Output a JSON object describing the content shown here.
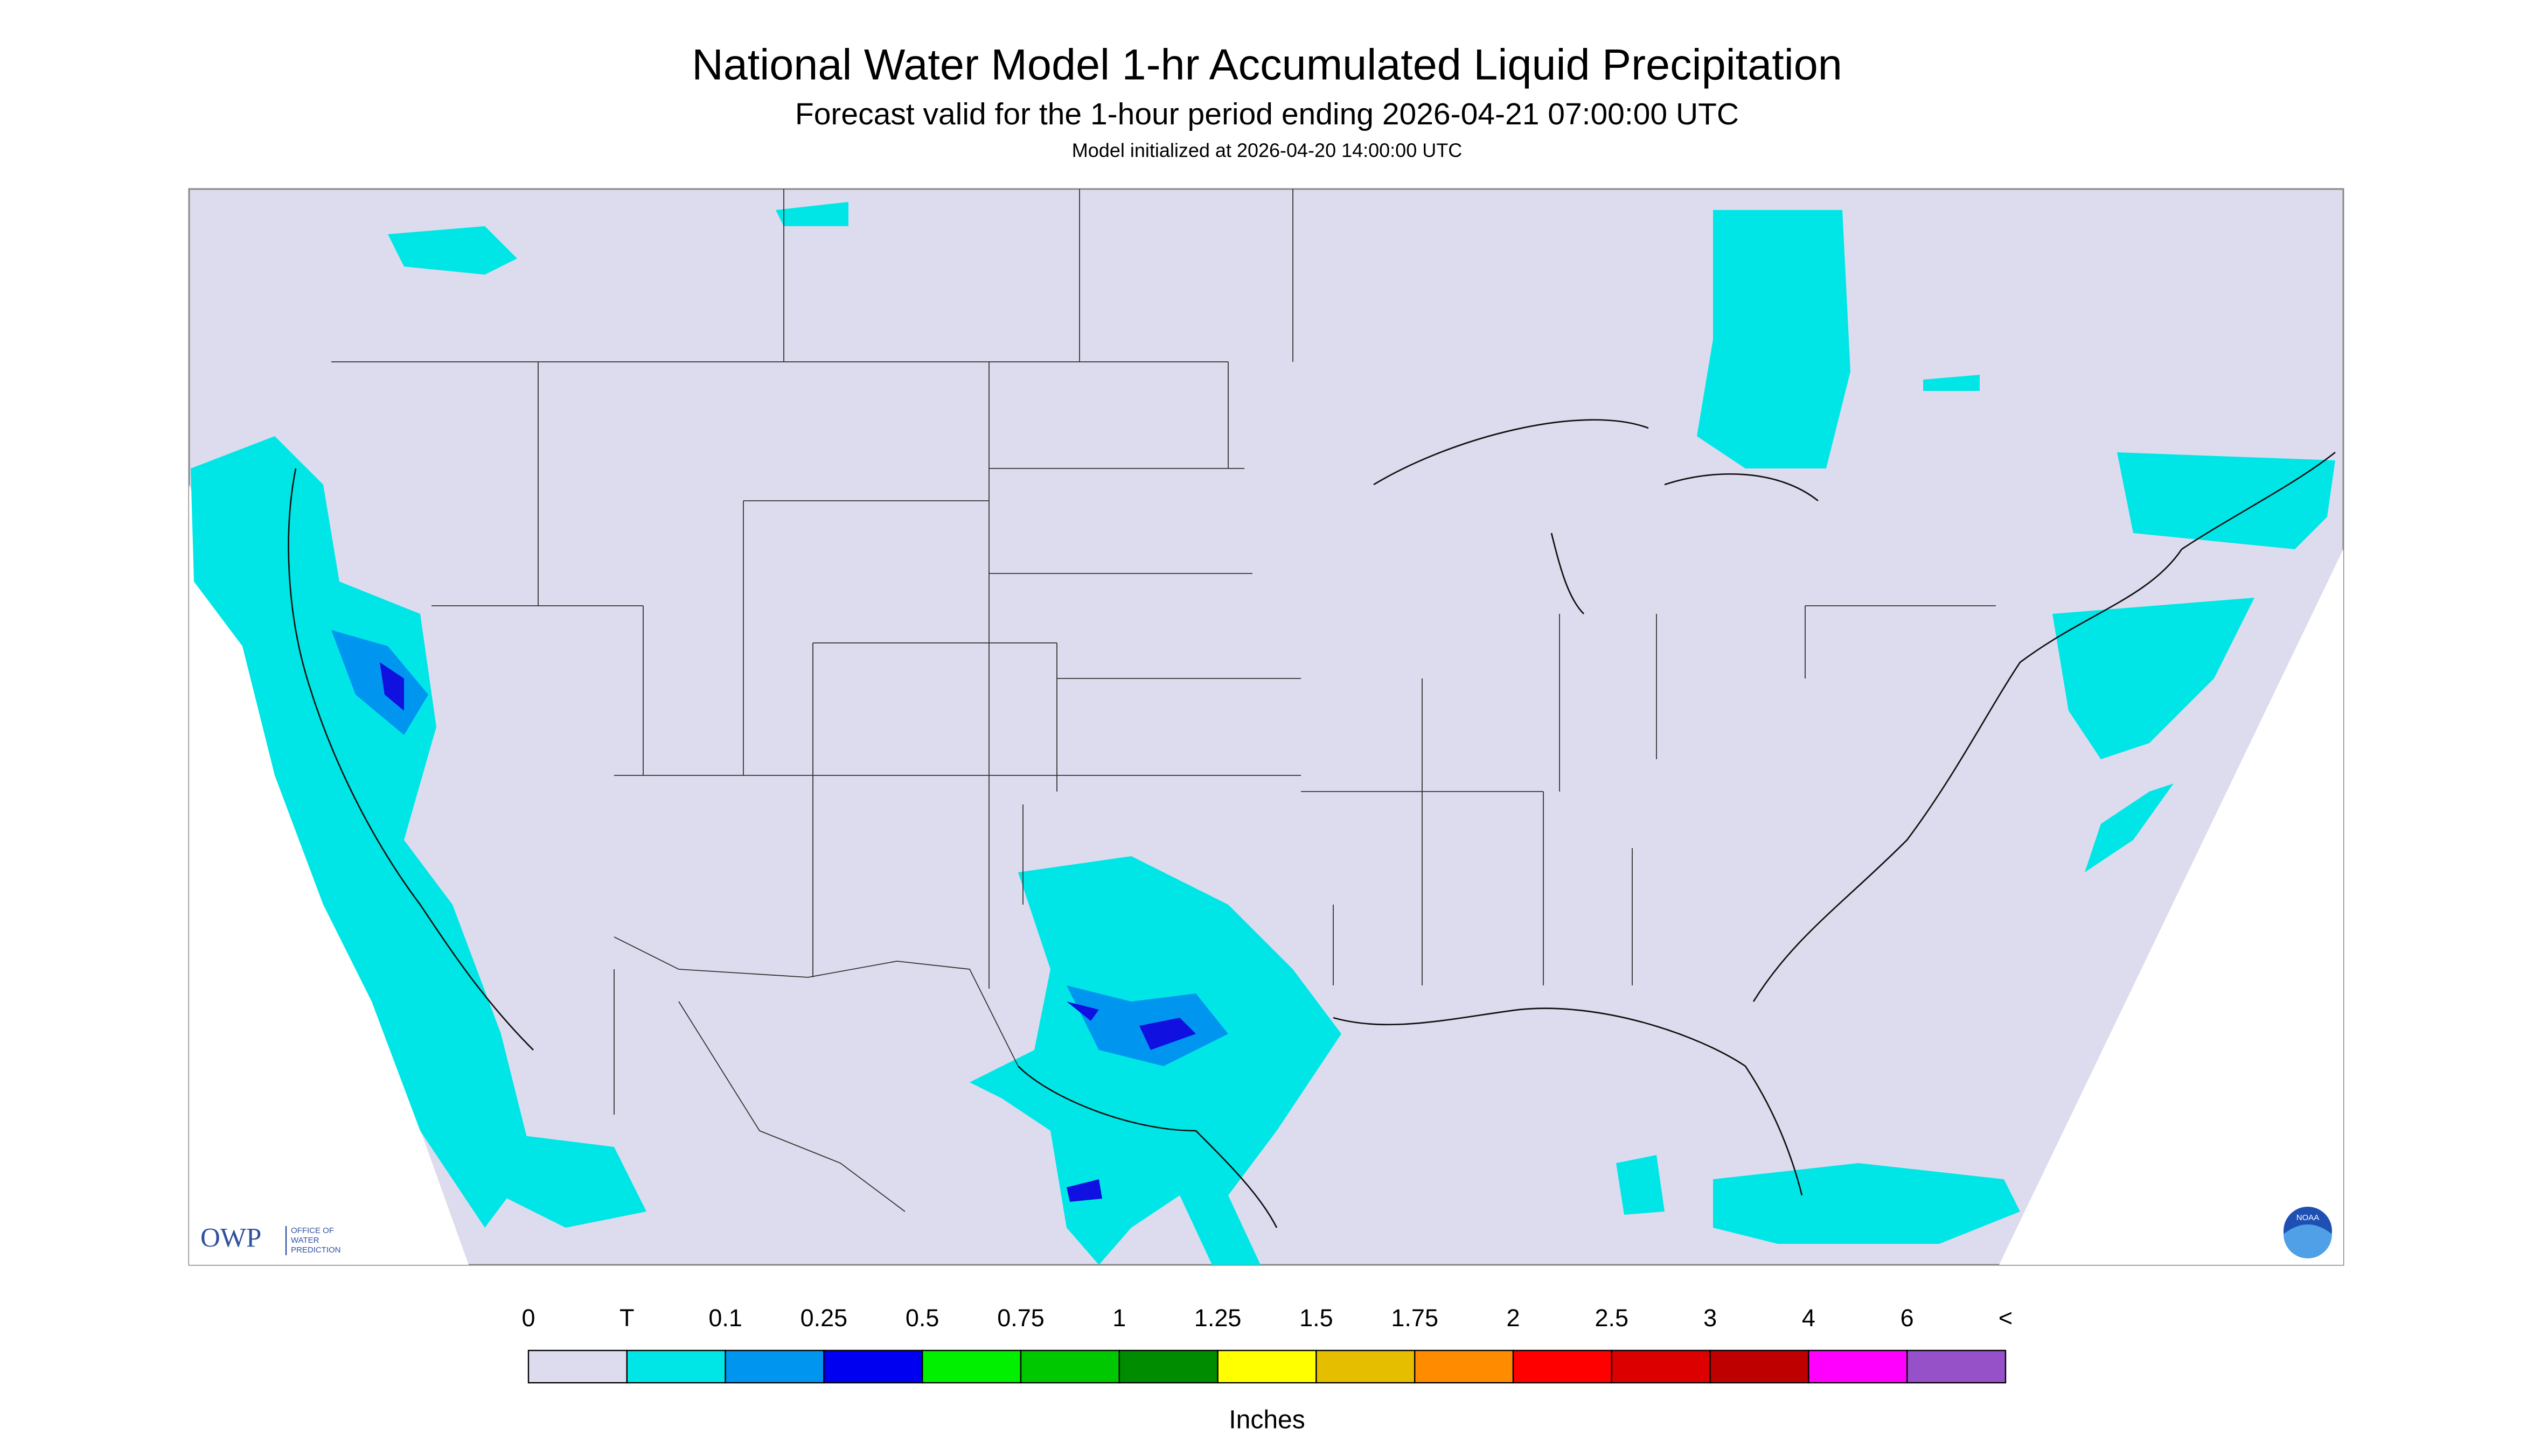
{
  "header": {
    "title": "National Water Model 1-hr Accumulated Liquid Precipitation",
    "subtitle": "Forecast valid for the 1-hour period ending 2026-04-21 07:00:00 UTC",
    "note": "Model initialized at 2026-04-20 14:00:00 UTC"
  },
  "logo": {
    "text": "OWP",
    "caption": [
      "OFFICE OF",
      "WATER",
      "PREDICTION"
    ],
    "badge": "NOAA"
  },
  "legend": {
    "labels": [
      "0",
      "T",
      "0.1",
      "0.25",
      "0.5",
      "0.75",
      "1",
      "1.25",
      "1.5",
      "1.75",
      "2",
      "2.5",
      "3",
      "4",
      "6",
      "<"
    ],
    "colors": [
      "#dcdcee",
      "#00e6e6",
      "#0096f0",
      "#0000f0",
      "#00f000",
      "#00c800",
      "#008c00",
      "#ffff00",
      "#e6be00",
      "#ff8c00",
      "#ff0000",
      "#dc0000",
      "#be0000",
      "#ff00ff",
      "#9650c8"
    ],
    "unit": "Inches"
  }
}
